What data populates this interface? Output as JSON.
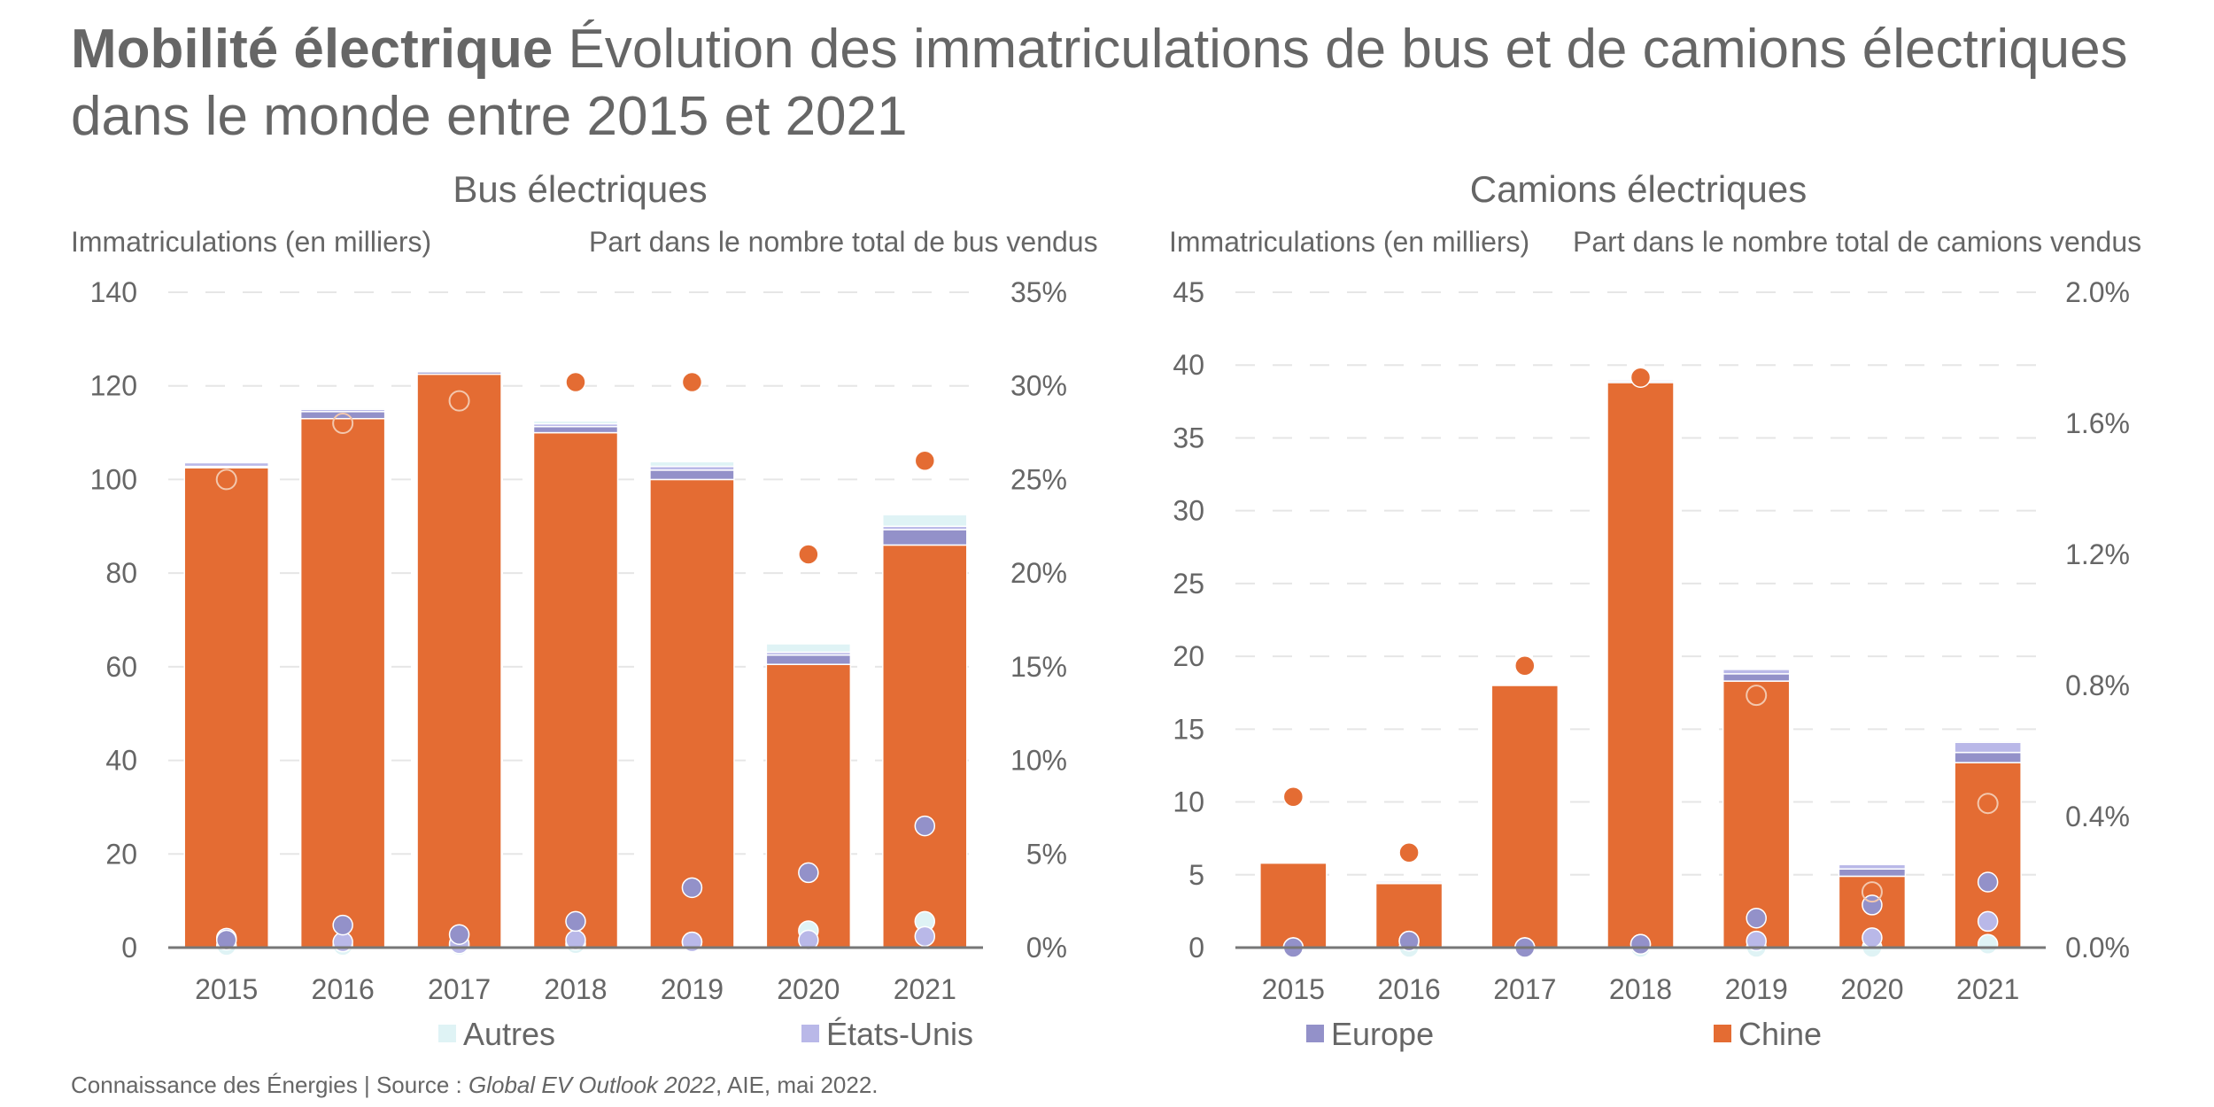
{
  "header": {
    "title_bold": "Mobilité électrique",
    "title_rest": " Évolution des immatriculations de bus et de camions électriques dans le monde entre 2015 et 2021"
  },
  "footer": {
    "prefix": "Connaissance des Énergies | Source : ",
    "source_italic": "Global EV Outlook 2022",
    "suffix": ", AIE, mai 2022."
  },
  "colors": {
    "Chine": "#e46c33",
    "Europe": "#9391c9",
    "États-Unis": "#b9b8e8",
    "Autres": "#dff3f5"
  },
  "chart_data": [
    {
      "type": "bar",
      "stacked": true,
      "title": "Bus électriques",
      "ylabel": "Immatriculations (en milliers)",
      "y2label": "Part dans le nombre total de bus vendus",
      "categories": [
        "2015",
        "2016",
        "2017",
        "2018",
        "2019",
        "2020",
        "2021"
      ],
      "ylim": [
        0,
        140
      ],
      "yticks": [
        0,
        20,
        40,
        60,
        80,
        100,
        120,
        140
      ],
      "y2lim": [
        0,
        35
      ],
      "y2ticks": [
        "0%",
        "5%",
        "10%",
        "15%",
        "20%",
        "25%",
        "30%",
        "35%"
      ],
      "grid": true,
      "series": [
        {
          "name": "Chine",
          "values": [
            102.5,
            113,
            122.5,
            110,
            100,
            60.5,
            86
          ]
        },
        {
          "name": "Europe",
          "values": [
            0.3,
            1.5,
            0.5,
            1.3,
            2.0,
            2.0,
            3.3
          ]
        },
        {
          "name": "États-Unis",
          "values": [
            0.8,
            0.5,
            0.3,
            0.6,
            0.8,
            0.6,
            0.7
          ]
        },
        {
          "name": "Autres",
          "values": [
            0.2,
            0.3,
            0.1,
            0.6,
            1.0,
            1.8,
            2.5
          ]
        }
      ],
      "share_series": [
        {
          "name": "Chine",
          "values": [
            25,
            28,
            29.2,
            30.2,
            30.2,
            21,
            26
          ]
        },
        {
          "name": "Europe",
          "values": [
            0.4,
            1.2,
            0.7,
            1.4,
            3.2,
            4.0,
            6.5
          ]
        },
        {
          "name": "États-Unis",
          "values": [
            0.5,
            0.3,
            0.2,
            0.4,
            0.3,
            0.4,
            0.6
          ]
        },
        {
          "name": "Autres",
          "values": [
            0.1,
            0.1,
            0.1,
            0.2,
            0.3,
            0.9,
            1.4
          ]
        }
      ],
      "legend": [
        "Autres",
        "États-Unis"
      ],
      "legend_position": "bottom"
    },
    {
      "type": "bar",
      "stacked": true,
      "title": "Camions électriques",
      "ylabel": "Immatriculations (en milliers)",
      "y2label": "Part dans le nombre total de camions vendus",
      "categories": [
        "2015",
        "2016",
        "2017",
        "2018",
        "2019",
        "2020",
        "2021"
      ],
      "ylim": [
        0,
        45
      ],
      "yticks": [
        0,
        5,
        10,
        15,
        20,
        25,
        30,
        35,
        40,
        45
      ],
      "y2lim": [
        0,
        2.0
      ],
      "y2ticks": [
        "0.0%",
        "0.4%",
        "0.8%",
        "1.2%",
        "1.6%",
        "2.0%"
      ],
      "grid": true,
      "series": [
        {
          "name": "Chine",
          "values": [
            5.8,
            4.4,
            18.0,
            38.8,
            18.3,
            4.9,
            12.7
          ]
        },
        {
          "name": "Europe",
          "values": [
            0.0,
            0.1,
            0.0,
            0.1,
            0.5,
            0.5,
            0.7
          ]
        },
        {
          "name": "États-Unis",
          "values": [
            0.0,
            0.1,
            0.0,
            0.1,
            0.3,
            0.3,
            0.7
          ]
        },
        {
          "name": "Autres",
          "values": [
            0.0,
            0.0,
            0.0,
            0.0,
            0.0,
            0.0,
            0.1
          ]
        }
      ],
      "share_series": [
        {
          "name": "Chine",
          "values": [
            0.46,
            0.29,
            0.86,
            1.74,
            0.77,
            0.17,
            0.44
          ]
        },
        {
          "name": "Europe",
          "values": [
            0.0,
            0.02,
            0.0,
            0.01,
            0.09,
            0.13,
            0.2
          ]
        },
        {
          "name": "États-Unis",
          "values": [
            0.0,
            0.02,
            0.0,
            0.01,
            0.02,
            0.03,
            0.08
          ]
        },
        {
          "name": "Autres",
          "values": [
            0.0,
            0.0,
            0.0,
            0.0,
            0.0,
            0.0,
            0.01
          ]
        }
      ],
      "legend": [
        "Europe",
        "Chine"
      ],
      "legend_position": "bottom"
    }
  ]
}
